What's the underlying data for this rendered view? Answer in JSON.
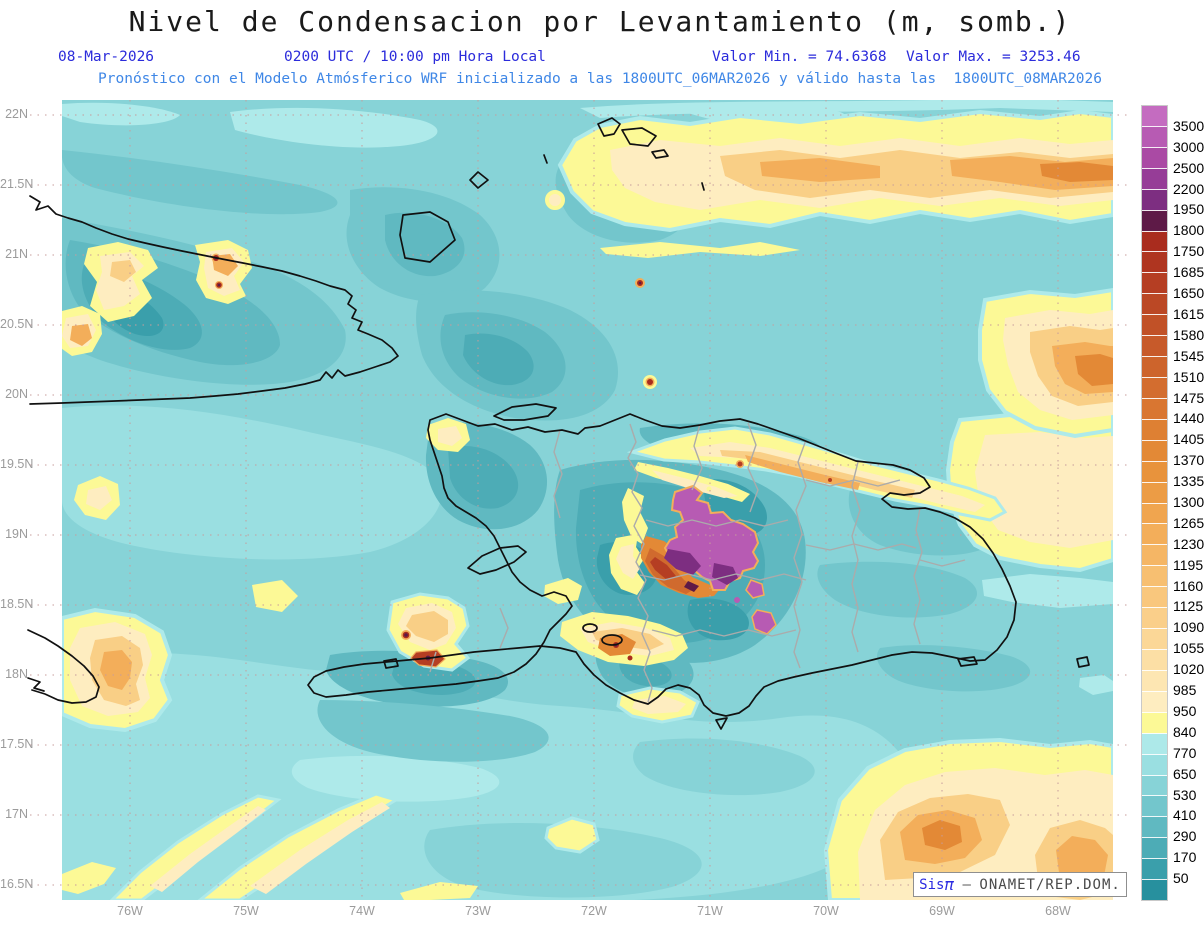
{
  "header": {
    "title": "Nivel de Condensacion por Levantamiento (m, somb.)",
    "date": "08-Mar-2026",
    "time": "0200 UTC / 10:00 pm Hora Local",
    "min_label": "Valor Min. = 74.6368",
    "max_label": "Valor Max. = 3253.46",
    "model_line": "Pronóstico con el Modelo Atmósferico WRF inicializado a las 1800UTC_06MAR2026 y válido hasta las  1800UTC_08MAR2026"
  },
  "axes": {
    "lat_labels": [
      "22N",
      "21.5N",
      "21N",
      "20.5N",
      "20N",
      "19.5N",
      "19N",
      "18.5N",
      "18N",
      "17.5N",
      "17N",
      "16.5N"
    ],
    "lon_labels": [
      "76W",
      "75W",
      "74W",
      "73W",
      "72W",
      "71W",
      "70W",
      "69W",
      "68W"
    ]
  },
  "colorbar": {
    "unit": "m",
    "labels": [
      3500,
      3000,
      2500,
      2200,
      1950,
      1800,
      1750,
      1685,
      1650,
      1615,
      1580,
      1545,
      1510,
      1475,
      1440,
      1405,
      1370,
      1335,
      1300,
      1265,
      1230,
      1195,
      1160,
      1125,
      1090,
      1055,
      1020,
      985,
      950,
      840,
      770,
      650,
      530,
      410,
      290,
      170,
      50
    ],
    "colors": [
      "#c46cc0",
      "#b75bb3",
      "#aa4aa4",
      "#963d97",
      "#7d2e81",
      "#5e1a47",
      "#a92c1e",
      "#af3520",
      "#b53e23",
      "#bb4825",
      "#c15127",
      "#c75a2a",
      "#cd642c",
      "#d36d2f",
      "#d97631",
      "#de8033",
      "#e38936",
      "#e8933c",
      "#ec9c45",
      "#f0a54f",
      "#f3ae5a",
      "#f5b665",
      "#f7bf71",
      "#f9c77d",
      "#facf8a",
      "#fbd797",
      "#fcdfa5",
      "#fde6b2",
      "#feedc0",
      "#fcf996",
      "#ade9e9",
      "#9adfe1",
      "#87d3d7",
      "#73c6cc",
      "#60b9c1",
      "#4dacb6",
      "#3a9fab",
      "#27909e"
    ],
    "min_value": "74.6368",
    "max_value": "3253.46"
  },
  "watermark": {
    "brand": "Sis",
    "pi": "π",
    "separator": "–",
    "org": "ONAMET/REP.DOM."
  }
}
